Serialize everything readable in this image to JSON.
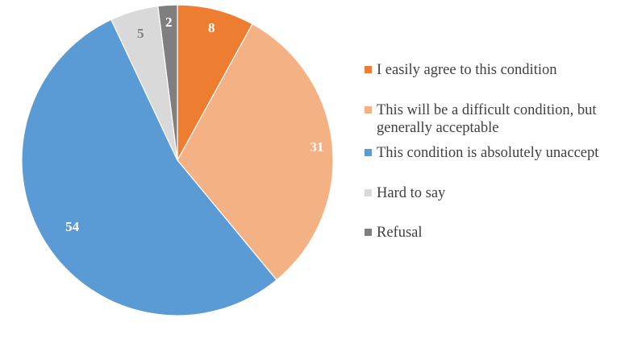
{
  "chart_data": {
    "type": "pie",
    "title": "",
    "slices": [
      {
        "label": "I easily agree to this condition",
        "value": 8,
        "display": "8",
        "color": "#ED7D31",
        "label_color": "#ffffff"
      },
      {
        "label": "This will be a difficult condition, but\ngenerally acceptable",
        "value": 31,
        "display": "31",
        "color": "#F4B183",
        "label_color": "#ffffff"
      },
      {
        "label": "This condition is absolutely unaccept",
        "value": 54,
        "display": "54",
        "color": "#5B9BD5",
        "label_color": "#ffffff"
      },
      {
        "label": "Hard to say",
        "value": 5,
        "display": "5",
        "color": "#D9D9D9",
        "label_color": "#7f7f7f"
      },
      {
        "label": "Refusal",
        "value": 2,
        "display": "2",
        "color": "#7F7F7F",
        "label_color": "#ffffff"
      }
    ],
    "legend_position": "right"
  }
}
